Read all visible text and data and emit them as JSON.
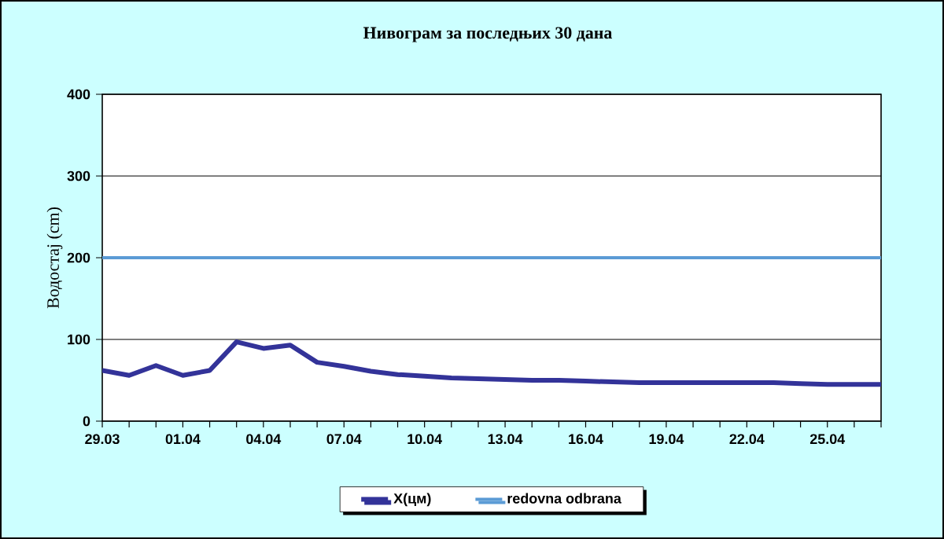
{
  "chart_data": {
    "type": "line",
    "title": "Нивограм за последњих 30 дана",
    "ylabel": "Водостај (cm)",
    "categories": [
      "29.03",
      null,
      null,
      "01.04",
      null,
      null,
      "04.04",
      null,
      null,
      "07.04",
      null,
      null,
      "10.04",
      null,
      null,
      "13.04",
      null,
      null,
      "16.04",
      null,
      null,
      "19.04",
      null,
      null,
      "22.04",
      null,
      null,
      "25.04",
      null,
      null
    ],
    "series": [
      {
        "name": "X(цм)",
        "color": "#333399",
        "values": [
          62,
          56,
          68,
          56,
          62,
          97,
          89,
          93,
          72,
          67,
          61,
          57,
          55,
          53,
          52,
          51,
          50,
          50,
          49,
          48,
          47,
          47,
          47,
          47,
          47,
          47,
          46,
          45,
          45,
          45
        ]
      }
    ],
    "ref_lines": [
      {
        "axis": "y",
        "value": 200,
        "label": "redovna odbrana",
        "color": "#5b9bd5"
      }
    ],
    "ylim": [
      0,
      400
    ],
    "yticks": [
      0,
      100,
      200,
      300,
      400
    ],
    "grid": "y",
    "legend": "bottom",
    "marker": "none",
    "line_style": "solid"
  }
}
